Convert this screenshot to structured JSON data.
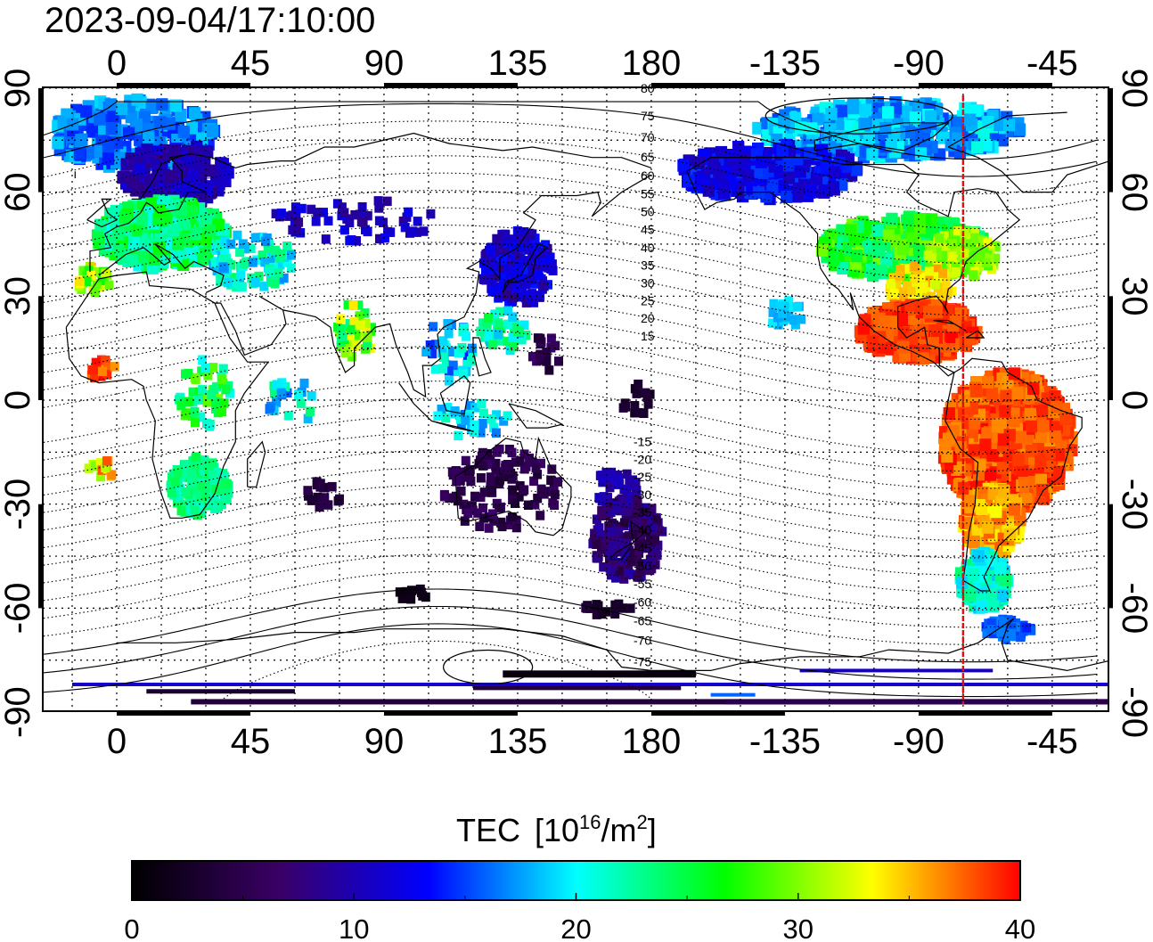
{
  "title": "2023-09-04/17:10:00",
  "map": {
    "projection": "equirectangular",
    "center_longitude": 180,
    "lon_tick_labels": [
      "0",
      "45",
      "90",
      "135",
      "180",
      "-135",
      "-90",
      "-45"
    ],
    "lat_tick_labels": [
      "90",
      "60",
      "30",
      "0",
      "-30",
      "-60",
      "-90"
    ],
    "terminator_longitude": -75,
    "magnetic_latitude_labels_north": [
      "80",
      "75",
      "70",
      "65",
      "60",
      "55",
      "50",
      "45",
      "40",
      "35",
      "30",
      "25",
      "20",
      "15"
    ],
    "magnetic_latitude_labels_south": [
      "15",
      "20",
      "25",
      "30",
      "35",
      "40",
      "45",
      "50",
      "55",
      "60",
      "65",
      "70",
      "75"
    ]
  },
  "colorbar": {
    "title": "TEC",
    "unit_prefix": "[10",
    "unit_exp": "16",
    "unit_mid": "/m",
    "unit_exp2": "2",
    "unit_suffix": "]",
    "min": 0,
    "max": 40,
    "tick_labels": [
      "0",
      "10",
      "20",
      "30",
      "40"
    ],
    "colors": [
      "#000000",
      "#3a0066",
      "#0000ff",
      "#00ffff",
      "#00ff00",
      "#ffff00",
      "#ff0000"
    ]
  }
}
